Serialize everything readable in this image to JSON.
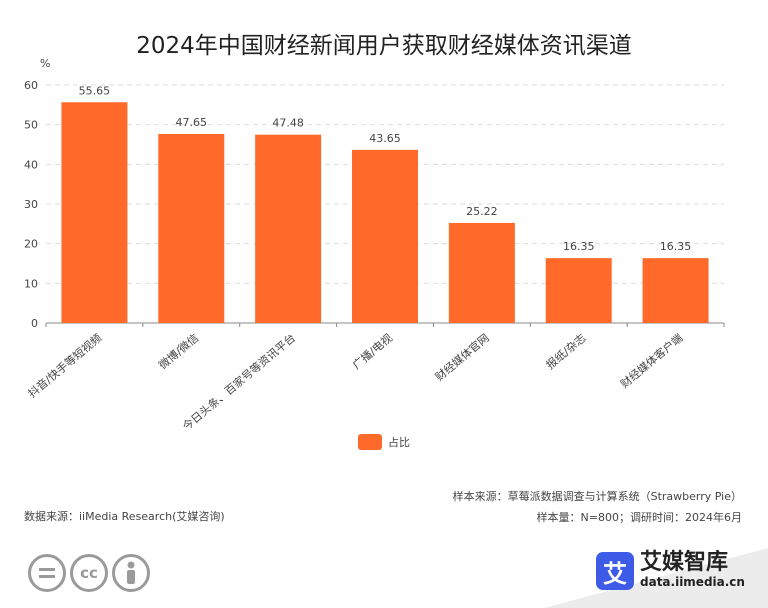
{
  "chart_data": {
    "type": "bar",
    "title": "2024年中国财经新闻用户获取财经媒体资讯渠道",
    "ylabel": "%",
    "ylim": [
      0,
      60
    ],
    "yticks": [
      0,
      10,
      20,
      30,
      40,
      50,
      60
    ],
    "grid": true,
    "categories": [
      "抖音/快手等短视频",
      "微博/微信",
      "今日头条、百家号等资讯平台",
      "广播/电视",
      "财经媒体官网",
      "报纸/杂志",
      "财经媒体客户端"
    ],
    "series": [
      {
        "name": "占比",
        "values": [
          55.65,
          47.65,
          47.48,
          43.65,
          25.22,
          16.35,
          16.35
        ]
      }
    ],
    "legend_position": "bottom-center",
    "bar_color": "#FF6A2B"
  },
  "source": {
    "data_source": "数据来源：iiMedia Research(艾媒咨询)",
    "sample_source": "样本来源：草莓派数据调查与计算系统（Strawberry Pie）",
    "sample_info": "样本量：N=800；调研时间：2024年6月"
  },
  "license_icons": [
    "=",
    "cc",
    "person-icon"
  ],
  "brand": {
    "logo_char": "艾",
    "name": "艾媒智库",
    "url": "data.iimedia.cn",
    "accent": "#3E5BE8"
  }
}
